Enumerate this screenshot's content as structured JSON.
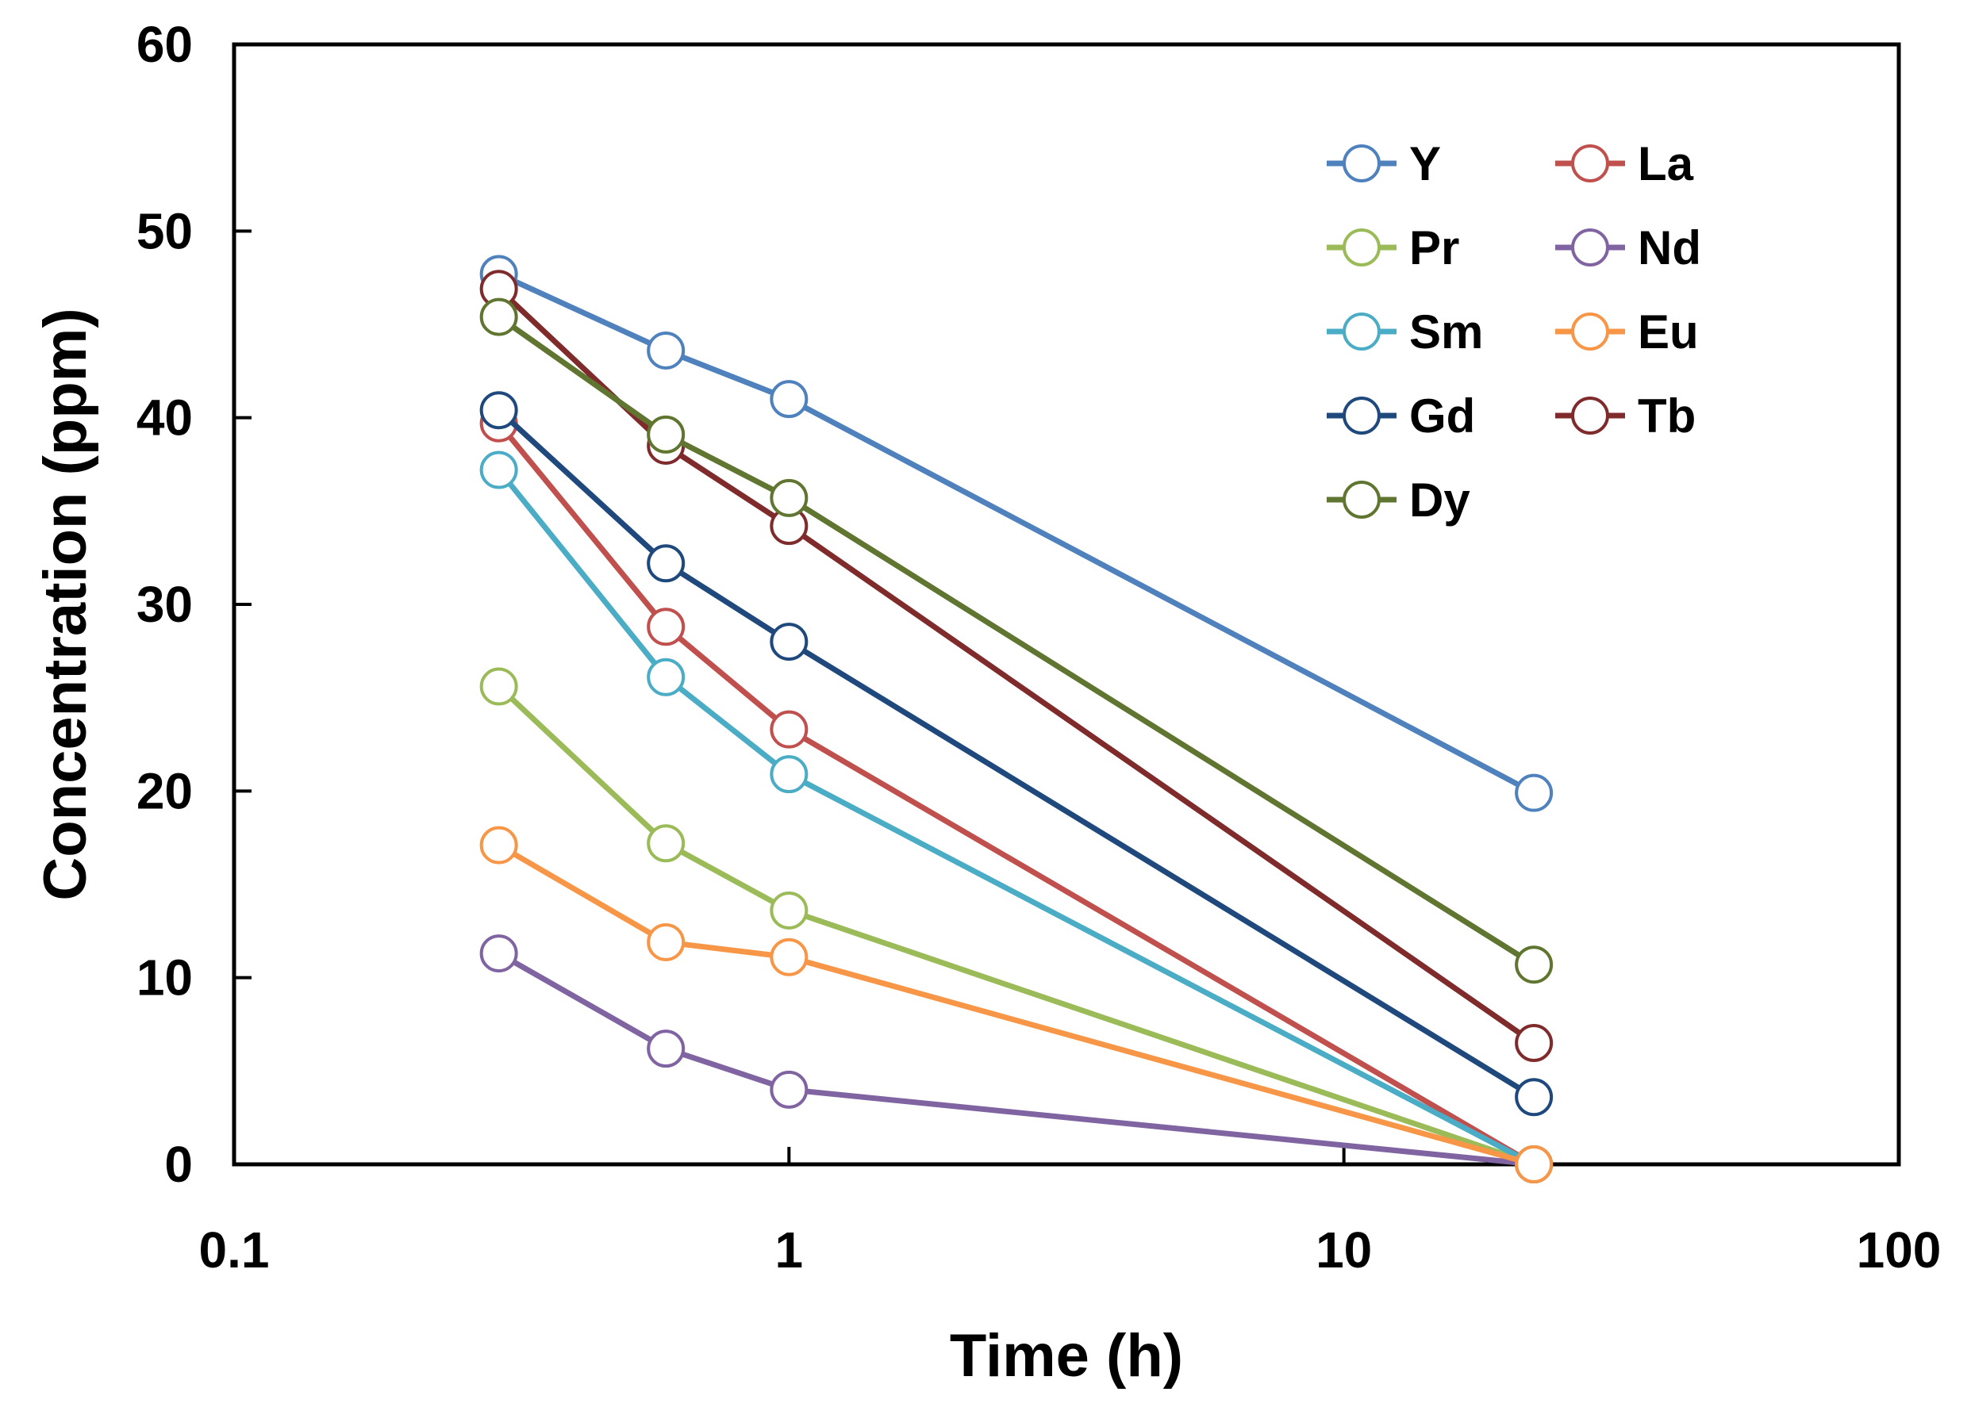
{
  "chart_data": {
    "type": "line",
    "xlabel": "Time (h)",
    "ylabel": "Concentration (ppm)",
    "x_scale": "log",
    "xlim": [
      0.1,
      100
    ],
    "ylim": [
      0,
      60
    ],
    "x_ticks": [
      "0.1",
      "1",
      "10",
      "100"
    ],
    "y_ticks": [
      "0",
      "10",
      "20",
      "30",
      "40",
      "50",
      "60"
    ],
    "grid": false,
    "legend_position": "top-right",
    "x": [
      0.3,
      0.6,
      1,
      22
    ],
    "series": [
      {
        "name": "Y",
        "color": "#4f81bd",
        "values": [
          47.7,
          43.6,
          41.0,
          19.9
        ]
      },
      {
        "name": "La",
        "color": "#c0504d",
        "values": [
          39.7,
          28.8,
          23.3,
          0
        ]
      },
      {
        "name": "Pr",
        "color": "#9bbb59",
        "values": [
          25.6,
          17.2,
          13.6,
          0
        ]
      },
      {
        "name": "Nd",
        "color": "#8064a2",
        "values": [
          11.3,
          6.2,
          4.0,
          0
        ]
      },
      {
        "name": "Sm",
        "color": "#4bacc6",
        "values": [
          37.2,
          26.1,
          20.9,
          0
        ]
      },
      {
        "name": "Eu",
        "color": "#f79646",
        "values": [
          17.1,
          11.9,
          11.1,
          0
        ]
      },
      {
        "name": "Gd",
        "color": "#1f497d",
        "values": [
          40.4,
          32.2,
          28.0,
          3.6
        ]
      },
      {
        "name": "Tb",
        "color": "#7f2b2b",
        "values": [
          46.9,
          38.5,
          34.2,
          6.5
        ]
      },
      {
        "name": "Dy",
        "color": "#5f7530",
        "values": [
          45.4,
          39.1,
          35.7,
          10.7
        ]
      }
    ]
  }
}
